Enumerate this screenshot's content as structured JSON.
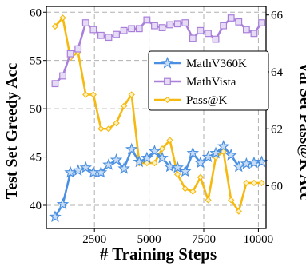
{
  "chart_data": {
    "type": "line",
    "xlabel": "# Training Steps",
    "ylabel_left": "Test Set Greedy Acc",
    "ylabel_right": "Val Set Pass@K Acc",
    "xlim": [
      300,
      10350
    ],
    "ylim_left": [
      37.6,
      60.6
    ],
    "ylim_right": [
      58.5,
      66.3
    ],
    "x_ticks": [
      2500,
      5000,
      7500,
      10000
    ],
    "y_ticks_left": [
      40,
      45,
      50,
      55,
      60
    ],
    "y_ticks_right": [
      60,
      62,
      64,
      66
    ],
    "grid": true,
    "legend_position": "center-right",
    "series": [
      {
        "name": "MathV360K",
        "axis": "left",
        "color": "#4a90e2",
        "marker": "star",
        "x": [
          700,
          1050,
          1400,
          1750,
          2100,
          2450,
          2800,
          3150,
          3500,
          3850,
          4200,
          4550,
          4900,
          5250,
          5600,
          5950,
          6300,
          6650,
          7000,
          7350,
          7700,
          8050,
          8400,
          8750,
          9100,
          9450,
          9800,
          10150
        ],
        "y": [
          38.8,
          40.1,
          43.4,
          43.6,
          43.9,
          43.4,
          43.4,
          44.2,
          44.7,
          43.8,
          45.8,
          44.5,
          44.9,
          45.6,
          44.9,
          44.0,
          43.9,
          43.5,
          45.4,
          44.4,
          45.0,
          45.4,
          46.1,
          45.2,
          44.0,
          44.3,
          44.4,
          44.5
        ]
      },
      {
        "name": "MathVista",
        "axis": "left",
        "color": "#a97fdb",
        "marker": "square",
        "x": [
          700,
          1050,
          1400,
          1750,
          2100,
          2450,
          2800,
          3150,
          3500,
          3850,
          4200,
          4550,
          4900,
          5250,
          5600,
          5950,
          6300,
          6650,
          7000,
          7350,
          7700,
          8050,
          8400,
          8750,
          9100,
          9450,
          9800,
          10150
        ],
        "y": [
          52.6,
          53.4,
          55.7,
          56.2,
          58.9,
          58.2,
          57.6,
          57.4,
          57.7,
          58.1,
          58.3,
          58.3,
          59.2,
          58.6,
          58.4,
          58.7,
          58.8,
          58.9,
          57.3,
          58.1,
          57.8,
          57.2,
          58.6,
          59.4,
          59.0,
          58.2,
          57.8,
          58.9
        ]
      },
      {
        "name": "Pass@K",
        "axis": "right",
        "color": "#f5b90f",
        "marker": "diamond",
        "x": [
          700,
          1050,
          1400,
          1750,
          2100,
          2450,
          2800,
          3150,
          3500,
          3850,
          4200,
          4550,
          4900,
          5250,
          5600,
          5950,
          6300,
          6650,
          7000,
          7350,
          7700,
          8050,
          8400,
          8750,
          9100,
          9450,
          9800,
          10150
        ],
        "y": [
          65.6,
          65.9,
          64.5,
          64.7,
          63.2,
          63.2,
          62.0,
          62.0,
          62.2,
          62.8,
          63.2,
          60.8,
          60.8,
          60.8,
          61.3,
          61.6,
          60.4,
          59.9,
          59.8,
          60.3,
          59.5,
          61.0,
          61.2,
          59.5,
          59.1,
          60.1,
          60.1,
          60.1
        ]
      }
    ]
  }
}
